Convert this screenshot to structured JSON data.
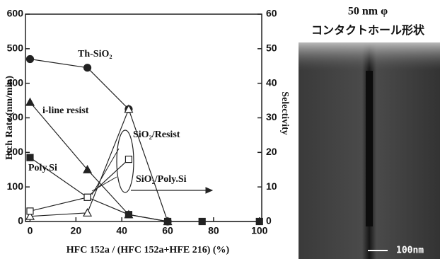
{
  "chart_data": {
    "type": "line",
    "x_label": "HFC 152a / (HFC 152a+HFE 216) (%)",
    "y_label": "Etch Rate (nm/min)",
    "y2_label": "Selectivity",
    "xlim": [
      -2,
      101
    ],
    "xticks": [
      0,
      20,
      40,
      60,
      80,
      100
    ],
    "ylim": [
      0,
      600
    ],
    "yticks": [
      0,
      100,
      200,
      300,
      400,
      500,
      600
    ],
    "y2lim": [
      0,
      60
    ],
    "y2ticks": [
      0,
      10,
      20,
      30,
      40,
      50,
      60
    ],
    "series": [
      {
        "name": "Th-SiO₂",
        "color": "#222",
        "marker": "circle",
        "filled": true,
        "x": [
          0,
          25,
          43,
          60
        ],
        "values": [
          470,
          445,
          325,
          0
        ]
      },
      {
        "name": "i-line resist",
        "color": "#222",
        "marker": "triangle",
        "filled": true,
        "x": [
          0,
          25,
          43,
          60
        ],
        "values": [
          345,
          150,
          20,
          0
        ]
      },
      {
        "name": "Poly.Si",
        "color": "#222",
        "marker": "square",
        "filled": true,
        "x": [
          0,
          25,
          43,
          60,
          75,
          100
        ],
        "values": [
          185,
          70,
          20,
          0,
          0,
          0
        ]
      },
      {
        "name": "SiO₂/Resist",
        "color": "#222",
        "marker": "triangle",
        "filled": false,
        "axis": "y2",
        "x": [
          0,
          25,
          43
        ],
        "values": [
          1.5,
          2.5,
          32.5
        ]
      },
      {
        "name": "SiO₂/Poly.Si",
        "color": "#222",
        "marker": "square",
        "filled": false,
        "axis": "y2",
        "x": [
          0,
          25,
          43
        ],
        "values": [
          3,
          7,
          18
        ]
      }
    ]
  },
  "image_panel": {
    "title": "50 nm φ",
    "subtitle": "コンタクトホール形状",
    "scale_label": "100nm"
  }
}
